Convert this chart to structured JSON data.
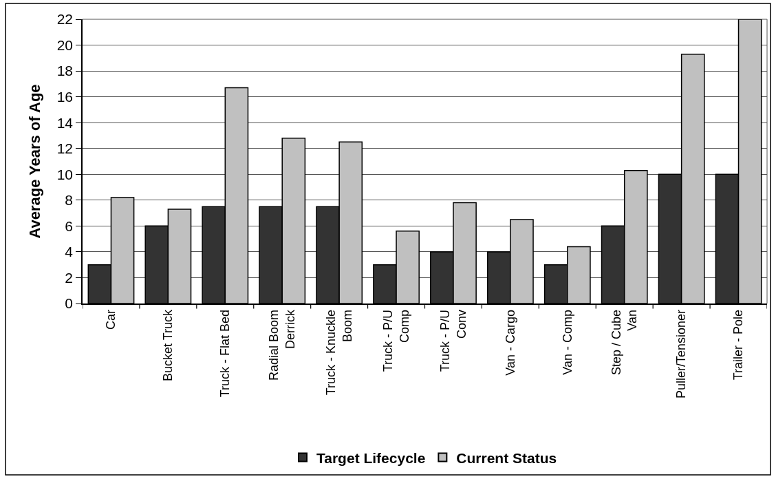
{
  "chart_data": {
    "type": "bar",
    "ylabel": "Average Years of Age",
    "categories": [
      "Car",
      "Bucket Truck",
      "Truck - Flat Bed",
      "Radial Boom\nDerrick",
      "Truck - Knuckle\nBoom",
      "Truck - P/U\nComp",
      "Truck - P/U\nConv",
      "Van - Cargo",
      "Van - Comp",
      "Step / Cube\nVan",
      "Puller/Tensioner",
      "Trailer - Pole"
    ],
    "series": [
      {
        "name": "Target Lifecycle",
        "color": "#333333",
        "values": [
          3,
          6,
          7.5,
          7.5,
          7.5,
          3,
          4,
          4,
          3,
          6,
          10,
          10
        ]
      },
      {
        "name": "Current Status",
        "color": "#c0c0c0",
        "values": [
          8.2,
          7.3,
          16.7,
          12.8,
          12.5,
          5.6,
          7.8,
          6.5,
          4.4,
          10.3,
          19.3,
          22
        ]
      }
    ],
    "ylim": [
      0,
      22
    ],
    "yticks": [
      0,
      2,
      4,
      6,
      8,
      10,
      12,
      14,
      16,
      18,
      20,
      22
    ],
    "grid": "y",
    "legend": "bottom"
  }
}
